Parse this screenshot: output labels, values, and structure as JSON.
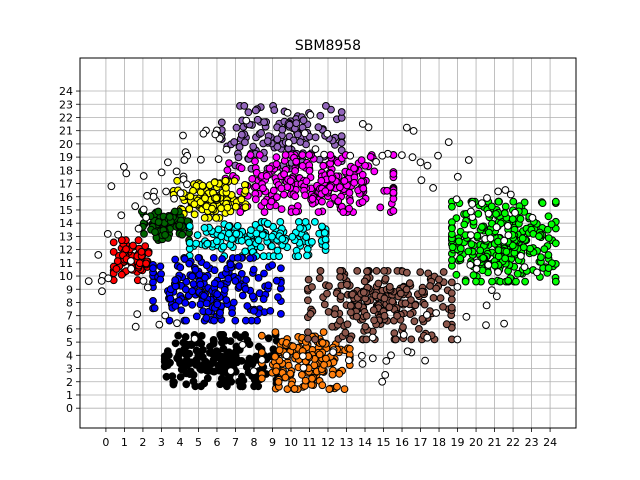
{
  "chart_data": {
    "type": "scatter",
    "title": "SBM8958",
    "xlabel": "",
    "ylabel": "",
    "xlim": [
      -1.4,
      25.4
    ],
    "ylim": [
      -1.5,
      26.5
    ],
    "grid": true,
    "x_ticks": [
      "0",
      "1",
      "2",
      "3",
      "4",
      "5",
      "6",
      "7",
      "8",
      "9",
      "10",
      "11",
      "12",
      "13",
      "14",
      "15",
      "16",
      "17",
      "18",
      "19",
      "20",
      "21",
      "22",
      "23",
      "24"
    ],
    "y_ticks": [
      "0",
      "1",
      "2",
      "3",
      "4",
      "5",
      "6",
      "7",
      "8",
      "9",
      "10",
      "11",
      "12",
      "13",
      "14",
      "15",
      "16",
      "17",
      "18",
      "19",
      "20",
      "21",
      "22",
      "23",
      "24"
    ],
    "clusters": [
      {
        "color": "#9467bd",
        "center": [
          9.5,
          20.5
        ],
        "spread": [
          3.0,
          2.2
        ],
        "count": 140
      },
      {
        "color": "#ff00ff",
        "center": [
          11.0,
          17.0
        ],
        "spread": [
          4.2,
          2.0
        ],
        "count": 260
      },
      {
        "color": "#ffff00",
        "center": [
          5.6,
          15.8
        ],
        "spread": [
          1.8,
          1.3
        ],
        "count": 120
      },
      {
        "color": "#006400",
        "center": [
          3.2,
          13.8
        ],
        "spread": [
          1.2,
          1.0
        ],
        "count": 80
      },
      {
        "color": "#ff0000",
        "center": [
          1.5,
          11.2
        ],
        "spread": [
          1.0,
          1.4
        ],
        "count": 80
      },
      {
        "color": "#00ffff",
        "center": [
          8.2,
          12.8
        ],
        "spread": [
          3.4,
          1.2
        ],
        "count": 160
      },
      {
        "color": "#0000ff",
        "center": [
          6.0,
          9.0
        ],
        "spread": [
          3.2,
          2.2
        ],
        "count": 200
      },
      {
        "color": "#000000",
        "center": [
          6.2,
          3.6
        ],
        "spread": [
          2.8,
          1.8
        ],
        "count": 200
      },
      {
        "color": "#ff7f0e",
        "center": [
          10.8,
          3.6
        ],
        "spread": [
          2.2,
          2.0
        ],
        "count": 160
      },
      {
        "color": "#8c564b",
        "center": [
          14.8,
          7.8
        ],
        "spread": [
          3.6,
          2.4
        ],
        "count": 260
      },
      {
        "color": "#00ff00",
        "center": [
          21.5,
          12.6
        ],
        "spread": [
          2.6,
          2.8
        ],
        "count": 300
      },
      {
        "color": "#ffffff",
        "center": [
          11.0,
          12.0
        ],
        "spread": [
          9.5,
          8.0
        ],
        "count": 140
      }
    ]
  },
  "style": {
    "grid_color": "#b0b0b0",
    "marker_edge_color": "#000000",
    "axes_color": "#000000"
  }
}
